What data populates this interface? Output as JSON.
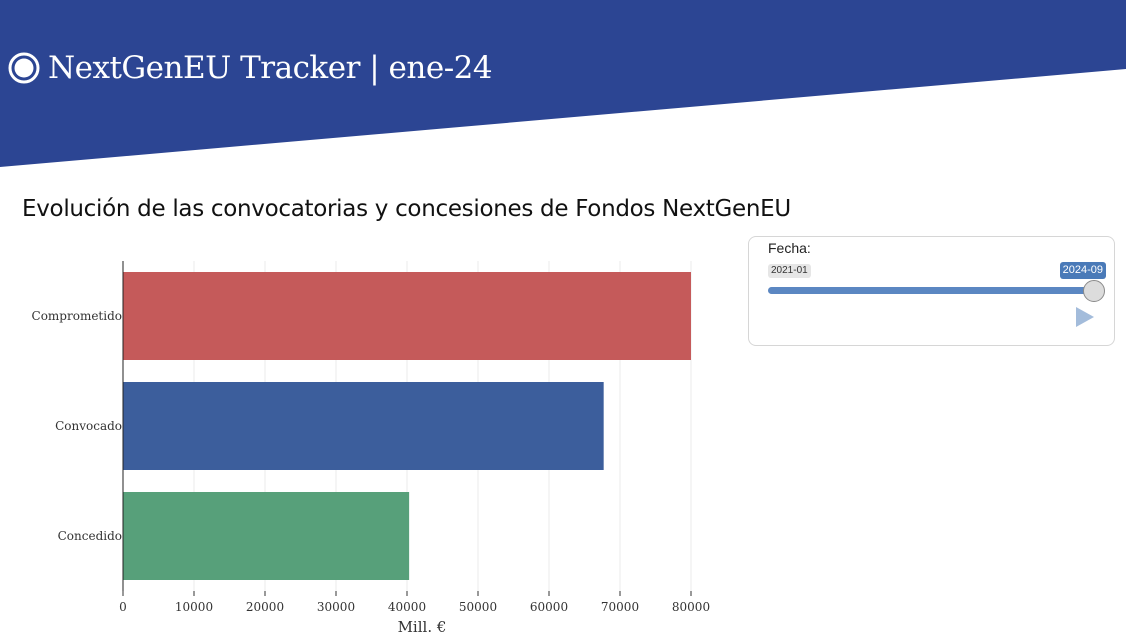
{
  "header": {
    "title": "NextGenEU Tracker | ene-24",
    "banner_color": "#2c4593",
    "icon": "circle-dot-icon"
  },
  "main": {
    "title": "Evolución de las convocatorias y concesiones de Fondos NextGenEU"
  },
  "slider": {
    "label": "Fecha:",
    "min_label": "2021-01",
    "max_label": "2024-09",
    "selected_label": "2024-09",
    "fill_fraction": 1.0,
    "accent_color": "#5b87c2",
    "play_icon": "play-icon"
  },
  "chart_data": {
    "type": "bar",
    "orientation": "horizontal",
    "categories": [
      "Comprometido",
      "Convocado",
      "Concedido"
    ],
    "values": [
      80000,
      67700,
      40300
    ],
    "colors": [
      "#c55a5a",
      "#3c5e9c",
      "#57a07a"
    ],
    "title": "",
    "xlabel": "Mill. €",
    "ylabel": "",
    "xlim": [
      0,
      80000
    ],
    "xticks": [
      0,
      10000,
      20000,
      30000,
      40000,
      50000,
      60000,
      70000,
      80000
    ],
    "grid": "vertical",
    "legend": "none"
  }
}
